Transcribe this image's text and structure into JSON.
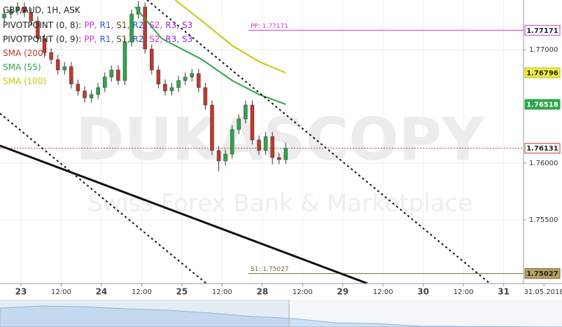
{
  "chart_data": {
    "type": "candlestick",
    "instrument": "GBP/AUD, 1H, ASK",
    "watermark": {
      "brand": "DUKASCOPY",
      "tagline": "Swiss Forex Bank & Marketplace"
    },
    "indicators": [
      {
        "name": "PIVOTPOINT (0, 8):",
        "parts": [
          {
            "text": "PP,",
            "color": "#cc33cc"
          },
          {
            "text": "R1,",
            "color": "#3355cc"
          },
          {
            "text": "S1,",
            "color": "#5a4a1a"
          },
          {
            "text": "R2,",
            "color": "#3355cc"
          },
          {
            "text": "S2,",
            "color": "#cc33cc"
          },
          {
            "text": "R3,",
            "color": "#8a2be2"
          },
          {
            "text": "S3",
            "color": "#8a2be2"
          }
        ]
      },
      {
        "name": "PIVOTPOINT (0, 9):",
        "parts": [
          {
            "text": "PP,",
            "color": "#cc33cc"
          },
          {
            "text": "R1,",
            "color": "#3355cc"
          },
          {
            "text": "S1,",
            "color": "#5a4a1a"
          },
          {
            "text": "R2,",
            "color": "#3355cc"
          },
          {
            "text": "S2,",
            "color": "#cc33cc"
          },
          {
            "text": "R3,",
            "color": "#8a2be2"
          },
          {
            "text": "S3",
            "color": "#8a2be2"
          }
        ]
      },
      {
        "name": "SMA (200)",
        "color": "#c0392b"
      },
      {
        "name": "SMA (55)",
        "color": "#2ea64a"
      },
      {
        "name": "SMA (100)",
        "color": "#c8c800"
      }
    ],
    "up_color": "#2ea64a",
    "down_color": "#c0392b",
    "x": [
      -5,
      -3,
      -1,
      1,
      3,
      5,
      7,
      9,
      11,
      13,
      15,
      17,
      19,
      21,
      23,
      25,
      27,
      29,
      31,
      33,
      35,
      37,
      39,
      41,
      43,
      45,
      47,
      49,
      51,
      53,
      55,
      57,
      59,
      61,
      63,
      65,
      67,
      69,
      71,
      73,
      75,
      77,
      79
    ],
    "open": [
      1.7728,
      1.77314,
      1.77345,
      1.77376,
      1.77327,
      1.77253,
      1.77098,
      1.76975,
      1.76913,
      1.76821,
      1.76851,
      1.76697,
      1.76636,
      1.76574,
      1.76605,
      1.76666,
      1.76759,
      1.76821,
      1.76728,
      1.77067,
      1.77314,
      1.77376,
      1.77006,
      1.76821,
      1.76697,
      1.76636,
      1.76666,
      1.76728,
      1.76759,
      1.7679,
      1.76666,
      1.76512,
      1.76111,
      1.76019,
      1.7608,
      1.76296,
      1.76389,
      1.76512,
      1.76204,
      1.76111,
      1.76234,
      1.76049,
      1.76031
    ],
    "high": [
      1.77354,
      1.77385,
      1.7742,
      1.77416,
      1.77367,
      1.77293,
      1.77138,
      1.77015,
      1.76953,
      1.76891,
      1.76891,
      1.76737,
      1.76676,
      1.76645,
      1.76706,
      1.76799,
      1.76861,
      1.76861,
      1.77107,
      1.77354,
      1.7743,
      1.77416,
      1.77046,
      1.76861,
      1.76737,
      1.76706,
      1.76768,
      1.76799,
      1.7683,
      1.7683,
      1.76706,
      1.76552,
      1.76151,
      1.7612,
      1.76336,
      1.76429,
      1.76552,
      1.76552,
      1.76244,
      1.76274,
      1.76274,
      1.76089,
      1.7618
    ],
    "low": [
      1.7724,
      1.77274,
      1.77305,
      1.77287,
      1.77213,
      1.77058,
      1.76935,
      1.76873,
      1.76781,
      1.76781,
      1.76657,
      1.76596,
      1.76534,
      1.76534,
      1.76565,
      1.76626,
      1.76719,
      1.76688,
      1.76688,
      1.77027,
      1.77274,
      1.76966,
      1.76781,
      1.76657,
      1.76596,
      1.76596,
      1.76626,
      1.76688,
      1.76719,
      1.76626,
      1.76472,
      1.76071,
      1.7593,
      1.75979,
      1.7604,
      1.76256,
      1.76349,
      1.76164,
      1.76071,
      1.76071,
      1.7599,
      1.75991,
      1.75991
    ],
    "close": [
      1.77314,
      1.77345,
      1.77376,
      1.77327,
      1.77253,
      1.77098,
      1.76975,
      1.76913,
      1.76821,
      1.76851,
      1.76697,
      1.76636,
      1.76574,
      1.76605,
      1.76666,
      1.76759,
      1.76821,
      1.76728,
      1.77067,
      1.77314,
      1.77376,
      1.77006,
      1.76821,
      1.76697,
      1.76636,
      1.76666,
      1.76728,
      1.76759,
      1.7679,
      1.76666,
      1.76512,
      1.76111,
      1.76019,
      1.7608,
      1.76296,
      1.76389,
      1.76512,
      1.76204,
      1.76111,
      1.76234,
      1.76049,
      1.76031,
      1.76131
    ],
    "lines": [
      {
        "color": "#c8c800",
        "x": [
          46,
          54,
          63,
          71,
          79
        ],
        "values": [
          1.77438,
          1.77253,
          1.77037,
          1.76895,
          1.76796
        ]
      },
      {
        "color": "#2ea64a",
        "x": [
          34,
          42,
          54,
          63,
          71,
          79
        ],
        "values": [
          1.77376,
          1.77098,
          1.76913,
          1.76728,
          1.76605,
          1.76518
        ]
      }
    ],
    "trendlines": [
      {
        "style": "solid",
        "x": [
          -6.26,
          103.3
        ],
        "values": [
          1.76154,
          1.74939
        ]
      },
      {
        "style": "dotted",
        "x": [
          -6.26,
          55.3
        ],
        "values": [
          1.76438,
          1.74939
        ]
      },
      {
        "style": "dotted",
        "x": [
          37.6,
          139.9
        ],
        "values": [
          1.77438,
          1.74939
        ]
      }
    ],
    "pivots": [
      {
        "label": "PP: 1.77171",
        "value": 1.77171,
        "color": "#cc33cc"
      },
      {
        "label": "S1: 1.75027",
        "value": 1.75027,
        "color": "#7a6a2a"
      }
    ],
    "price_markers": [
      {
        "value": 1.77171,
        "fill": "#ffffff",
        "stroke": "#cc33cc",
        "text_color": "#222222"
      },
      {
        "value": 1.76796,
        "fill": "#eeee44",
        "stroke": "#bbbb00",
        "text_color": "#222222"
      },
      {
        "value": 1.76518,
        "fill": "#2ea64a",
        "stroke": "#2ea64a",
        "text_color": "#ffffff"
      },
      {
        "value": 1.76131,
        "fill": "#ffffff",
        "stroke": "#c0392b",
        "text_color": "#222222"
      },
      {
        "value": 1.75027,
        "fill": "#b8a060",
        "stroke": "#7a6a2a",
        "text_color": "#222222"
      }
    ],
    "current_price": 1.76131,
    "xlim": [
      -6.26,
      161.4
    ],
    "ylim": [
      1.74938,
      1.77438
    ],
    "yticks": [
      {
        "value": 1.755,
        "label": "1.75500"
      },
      {
        "value": 1.76,
        "label": "1.76000"
      },
      {
        "value": 1.77,
        "label": "1.77000"
      }
    ],
    "xticks": [
      {
        "value": 0,
        "label": "23"
      },
      {
        "value": 12,
        "label": "12:00"
      },
      {
        "value": 24,
        "label": "24"
      },
      {
        "value": 36,
        "label": "12:00"
      },
      {
        "value": 48,
        "label": "25"
      },
      {
        "value": 60,
        "label": "12:00"
      },
      {
        "value": 72,
        "label": "28"
      },
      {
        "value": 84,
        "label": "12:00"
      },
      {
        "value": 96,
        "label": "29"
      },
      {
        "value": 108,
        "label": "12:00"
      },
      {
        "value": 120,
        "label": "30"
      },
      {
        "value": 132,
        "label": "12:00"
      },
      {
        "value": 144,
        "label": "31"
      },
      {
        "value": 156,
        "label": "31.05.2018"
      }
    ],
    "grid": true
  }
}
